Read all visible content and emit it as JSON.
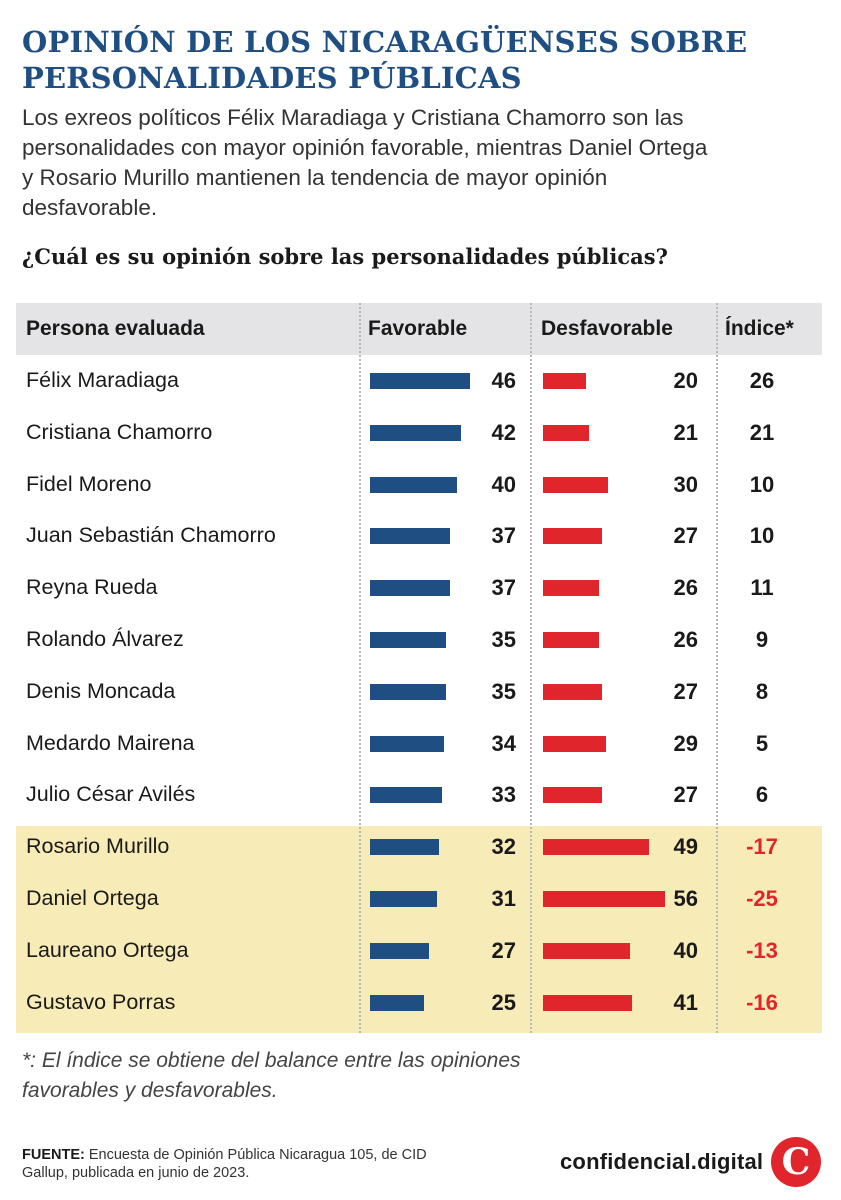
{
  "title": "OPINIÓN DE LOS NICARAGÜENSES SOBRE PERSONALIDADES PÚBLICAS",
  "subtitle": "Los exreos políticos Félix Maradiaga y Cristiana Chamorro son las personalidades con mayor opinión favorable, mientras Daniel Ortega y Rosario Murillo mantienen la tendencia de mayor opinión desfavorable.",
  "question": "¿Cuál es su opinión sobre las personalidades públicas?",
  "colors": {
    "title": "#1f4f82",
    "favorable": "#1f4f82",
    "unfavorable": "#e0262c",
    "negative_index": "#e0262c",
    "highlight": "#f7ebb8",
    "header_bg": "#e4e4e6"
  },
  "chart_data": {
    "type": "table",
    "columns": [
      "Persona evaluada",
      "Favorable",
      "Desfavorable",
      "Índice*"
    ],
    "rows": [
      {
        "name": "Félix Maradiaga",
        "favorable": 46,
        "desfavorable": 20,
        "indice": "26",
        "highlight": false
      },
      {
        "name": "Cristiana Chamorro",
        "favorable": 42,
        "desfavorable": 21,
        "indice": "21",
        "highlight": false
      },
      {
        "name": "Fidel Moreno",
        "favorable": 40,
        "desfavorable": 30,
        "indice": "10",
        "highlight": false
      },
      {
        "name": "Juan Sebastián Chamorro",
        "favorable": 37,
        "desfavorable": 27,
        "indice": "10",
        "highlight": false
      },
      {
        "name": "Reyna Rueda",
        "favorable": 37,
        "desfavorable": 26,
        "indice": "11",
        "highlight": false
      },
      {
        "name": "Rolando Álvarez",
        "favorable": 35,
        "desfavorable": 26,
        "indice": "9",
        "highlight": false
      },
      {
        "name": "Denis Moncada",
        "favorable": 35,
        "desfavorable": 27,
        "indice": "8",
        "highlight": false
      },
      {
        "name": "Medardo Mairena",
        "favorable": 34,
        "desfavorable": 29,
        "indice": "5",
        "highlight": false
      },
      {
        "name": "Julio César Avilés",
        "favorable": 33,
        "desfavorable": 27,
        "indice": "6",
        "highlight": false
      },
      {
        "name": "Rosario Murillo",
        "favorable": 32,
        "desfavorable": 49,
        "indice": "-17",
        "highlight": true
      },
      {
        "name": "Daniel Ortega",
        "favorable": 31,
        "desfavorable": 56,
        "indice": "-25",
        "highlight": true
      },
      {
        "name": "Laureano Ortega",
        "favorable": 27,
        "desfavorable": 40,
        "indice": "-13",
        "highlight": true
      },
      {
        "name": "Gustavo Porras",
        "favorable": 25,
        "desfavorable": 41,
        "indice": "-16",
        "highlight": true
      }
    ]
  },
  "footnote": "*: El índice se obtiene del balance entre las opiniones favorables y desfavorables.",
  "source": {
    "label": "FUENTE:",
    "text": "Encuesta de Opinión Pública Nicaragua 105, de CID Gallup, publicada en junio de 2023."
  },
  "brand": {
    "name": "confidencial.digital",
    "logo_letter": "C"
  }
}
